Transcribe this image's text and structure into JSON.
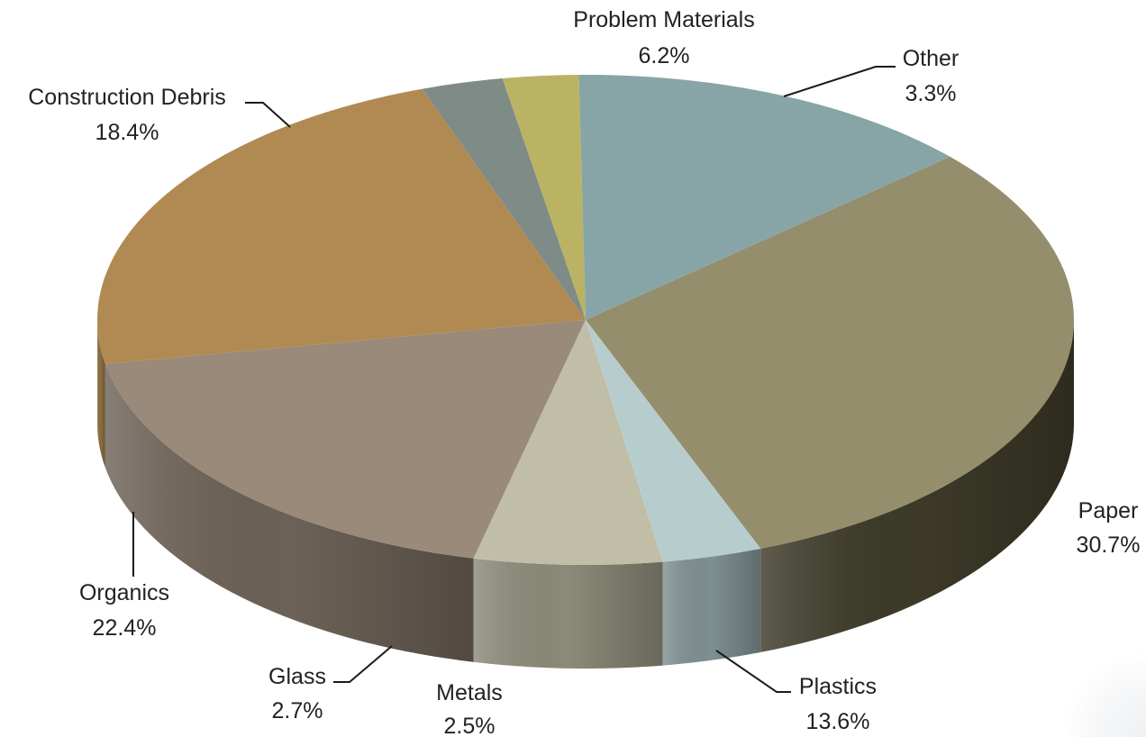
{
  "chart_data": {
    "type": "pie",
    "title": "",
    "slices": [
      {
        "label": "Paper",
        "value_label": "30.7%",
        "value": 30.7,
        "color": "#958e6c",
        "side_color": "#3d3a28"
      },
      {
        "label": "Plastics",
        "value_label": "13.6%",
        "value": 13.6,
        "color": "#87a5a6",
        "side_color": "#3a4a4c"
      },
      {
        "label": "Metals",
        "value_label": "2.5%",
        "value": 2.5,
        "color": "#bbb364",
        "side_color": "#7a7440"
      },
      {
        "label": "Glass",
        "value_label": "2.7%",
        "value": 2.7,
        "color": "#7f8b87",
        "side_color": "#5c6563"
      },
      {
        "label": "Organics",
        "value_label": "22.4%",
        "value": 22.4,
        "color": "#b08a52",
        "side_color": "#8a6c3e"
      },
      {
        "label": "Construction Debris",
        "value_label": "18.4%",
        "value": 18.4,
        "color": "#9a8a7a",
        "side_color": "#6d6257"
      },
      {
        "label": "Problem Materials",
        "value_label": "6.2%",
        "value": 6.2,
        "color": "#c0bea6",
        "side_color": "#8c8a78"
      },
      {
        "label": "Other",
        "value_label": "3.3%",
        "value": 3.3,
        "color": "#b7cccd",
        "side_color": "#7f9091"
      }
    ],
    "legend": "none",
    "style": "3d-pie"
  }
}
